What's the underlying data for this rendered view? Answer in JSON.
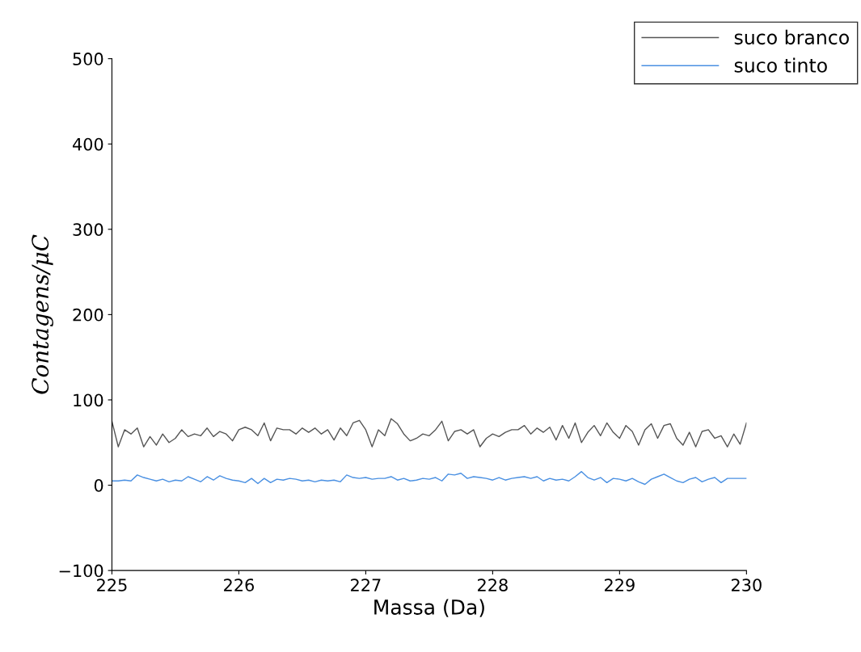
{
  "chart_data": {
    "type": "line",
    "xlabel": "Massa (Da)",
    "ylabel": "Contagens/μC",
    "xlim": [
      225,
      230
    ],
    "ylim": [
      -100,
      500
    ],
    "xticks": [
      225,
      226,
      227,
      228,
      229,
      230
    ],
    "yticks": [
      {
        "value": -100,
        "label": "−100"
      },
      0,
      100,
      200,
      300,
      400,
      500
    ],
    "grid": false,
    "legend": "top right",
    "marker": "none",
    "line_style": "solid",
    "x": [
      225,
      225.05,
      225.1,
      225.15,
      225.2,
      225.25,
      225.3,
      225.35,
      225.4,
      225.45,
      225.5,
      225.55,
      225.6,
      225.65,
      225.7,
      225.75,
      225.8,
      225.85,
      225.9,
      225.95,
      226,
      226.05,
      226.1,
      226.15,
      226.2,
      226.25,
      226.3,
      226.35,
      226.4,
      226.45,
      226.5,
      226.55,
      226.6,
      226.65,
      226.7,
      226.75,
      226.8,
      226.85,
      226.9,
      226.95,
      227,
      227.05,
      227.1,
      227.15,
      227.2,
      227.25,
      227.3,
      227.35,
      227.4,
      227.45,
      227.5,
      227.55,
      227.6,
      227.65,
      227.7,
      227.75,
      227.8,
      227.85,
      227.9,
      227.95,
      228,
      228.05,
      228.1,
      228.15,
      228.2,
      228.25,
      228.3,
      228.35,
      228.4,
      228.45,
      228.5,
      228.55,
      228.6,
      228.65,
      228.7,
      228.75,
      228.8,
      228.85,
      228.9,
      228.95,
      229,
      229.05,
      229.1,
      229.15,
      229.2,
      229.25,
      229.3,
      229.35,
      229.4,
      229.45,
      229.5,
      229.55,
      229.6,
      229.65,
      229.7,
      229.75,
      229.8,
      229.85,
      229.9,
      229.95,
      230
    ],
    "series": [
      {
        "name": "suco branco",
        "color": "#555555",
        "values": [
          75,
          45,
          65,
          60,
          67,
          45,
          57,
          47,
          60,
          50,
          55,
          65,
          57,
          60,
          58,
          67,
          57,
          63,
          60,
          52,
          65,
          68,
          65,
          58,
          73,
          52,
          67,
          65,
          65,
          60,
          67,
          62,
          67,
          60,
          65,
          53,
          67,
          58,
          73,
          76,
          65,
          45,
          65,
          58,
          78,
          72,
          60,
          52,
          55,
          60,
          58,
          65,
          75,
          52,
          63,
          65,
          60,
          65,
          45,
          55,
          60,
          57,
          62,
          65,
          65,
          70,
          60,
          67,
          62,
          68,
          53,
          70,
          55,
          73,
          50,
          62,
          70,
          58,
          73,
          62,
          55,
          70,
          63,
          47,
          65,
          72,
          55,
          70,
          72,
          55,
          47,
          62,
          45,
          63,
          65,
          55,
          58,
          45,
          60,
          48,
          73
        ]
      },
      {
        "name": "suco tinto",
        "color": "#4a90e2",
        "values": [
          5,
          5,
          6,
          5,
          12,
          9,
          7,
          5,
          7,
          4,
          6,
          5,
          10,
          7,
          4,
          10,
          6,
          11,
          8,
          6,
          5,
          3,
          8,
          2,
          8,
          3,
          7,
          6,
          8,
          7,
          5,
          6,
          4,
          6,
          5,
          6,
          4,
          12,
          9,
          8,
          9,
          7,
          8,
          8,
          10,
          6,
          8,
          5,
          6,
          8,
          7,
          9,
          5,
          13,
          12,
          14,
          8,
          10,
          9,
          8,
          6,
          9,
          6,
          8,
          9,
          10,
          8,
          10,
          5,
          8,
          6,
          7,
          5,
          10,
          16,
          9,
          6,
          9,
          3,
          8,
          7,
          5,
          8,
          4,
          1,
          7,
          10,
          13,
          9,
          5,
          3,
          7,
          9,
          4,
          7,
          9,
          3,
          8,
          8,
          8,
          8
        ]
      }
    ]
  }
}
